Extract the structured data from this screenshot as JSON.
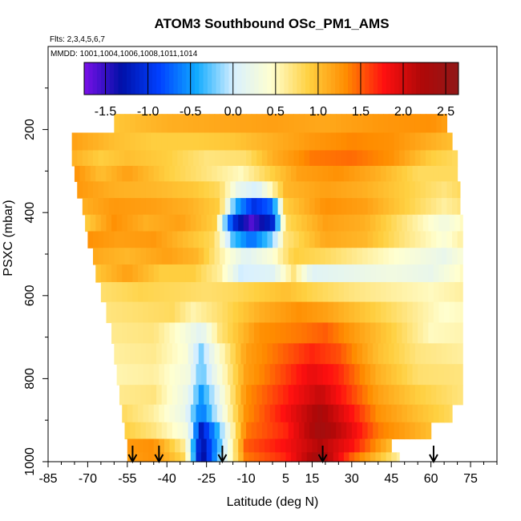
{
  "chart_data": {
    "type": "heatmap",
    "title": "ATOM3 Southbound OSc_PM1_AMS",
    "subtitle_flights": "Flts: 2,3,4,5,6,7",
    "subtitle_dates": "MMDD: 1001,1004,1006,1008,1011,1014",
    "xlabel": "Latitude (deg N)",
    "ylabel": "PSXC (mbar)",
    "xlim": [
      -85,
      85
    ],
    "ylim": [
      1000,
      0
    ],
    "xticks": [
      -85,
      -70,
      -55,
      -40,
      -25,
      -10,
      5,
      15,
      30,
      45,
      60,
      75
    ],
    "yticks": [
      200,
      400,
      600,
      800,
      1000
    ],
    "colorbar": {
      "range": [
        -1.75,
        2.65
      ],
      "ticks": [
        -1.5,
        -1.0,
        -0.5,
        0.0,
        0.5,
        1.0,
        1.5,
        2.0,
        2.5
      ],
      "tick_labels": [
        "-1.5",
        "-1.0",
        "-0.5",
        "0.0",
        "0.5",
        "1.0",
        "1.5",
        "2.0",
        "2.5"
      ],
      "colors": [
        "#7a10e8",
        "#0010a8",
        "#0040ff",
        "#10aaff",
        "#d8f0ff",
        "#ffffd0",
        "#ffd040",
        "#ff8c00",
        "#ff1010",
        "#b00808",
        "#901818"
      ]
    },
    "grid": false,
    "profile_arrows_lat": [
      -53,
      -43,
      -19,
      19,
      61
    ],
    "rows": [
      {
        "p": 185,
        "lat_min": -60,
        "lat_max": 66,
        "nodes": [
          [
            -60,
            0.95
          ],
          [
            -40,
            1.1
          ],
          [
            -20,
            1.15
          ],
          [
            0,
            1.2
          ],
          [
            20,
            1.15
          ],
          [
            40,
            1.25
          ],
          [
            60,
            1.3
          ],
          [
            66,
            1.2
          ]
        ]
      },
      {
        "p": 230,
        "lat_min": -76,
        "lat_max": 68,
        "nodes": [
          [
            -76,
            1.2
          ],
          [
            -60,
            1.0
          ],
          [
            -45,
            0.9
          ],
          [
            -30,
            0.9
          ],
          [
            -15,
            0.95
          ],
          [
            0,
            1.1
          ],
          [
            15,
            1.25
          ],
          [
            30,
            1.35
          ],
          [
            45,
            1.3
          ],
          [
            60,
            1.1
          ],
          [
            68,
            1.0
          ]
        ]
      },
      {
        "p": 270,
        "lat_min": -76,
        "lat_max": 70,
        "nodes": [
          [
            -76,
            1.1
          ],
          [
            -65,
            0.9
          ],
          [
            -55,
            1.0
          ],
          [
            -40,
            0.9
          ],
          [
            -25,
            0.7
          ],
          [
            -10,
            0.75
          ],
          [
            0,
            1.1
          ],
          [
            15,
            1.4
          ],
          [
            30,
            1.45
          ],
          [
            45,
            1.3
          ],
          [
            60,
            0.9
          ],
          [
            70,
            0.8
          ]
        ]
      },
      {
        "p": 305,
        "lat_min": -75,
        "lat_max": 70,
        "nodes": [
          [
            -75,
            1.3
          ],
          [
            -65,
            1.0
          ],
          [
            -55,
            1.2
          ],
          [
            -40,
            0.9
          ],
          [
            -25,
            0.7
          ],
          [
            -12,
            0.5
          ],
          [
            -3,
            0.8
          ],
          [
            10,
            1.2
          ],
          [
            25,
            1.3
          ],
          [
            40,
            1.1
          ],
          [
            55,
            0.8
          ],
          [
            70,
            0.8
          ]
        ]
      },
      {
        "p": 345,
        "lat_min": -74,
        "lat_max": 71,
        "nodes": [
          [
            -74,
            1.25
          ],
          [
            -60,
            1.1
          ],
          [
            -45,
            1.05
          ],
          [
            -30,
            0.95
          ],
          [
            -20,
            0.8
          ],
          [
            -13,
            0.2
          ],
          [
            -6,
            0.0
          ],
          [
            5,
            1.05
          ],
          [
            20,
            1.2
          ],
          [
            35,
            1.1
          ],
          [
            50,
            0.9
          ],
          [
            65,
            0.7
          ],
          [
            71,
            0.8
          ]
        ]
      },
      {
        "p": 385,
        "lat_min": -72,
        "lat_max": 71,
        "nodes": [
          [
            -72,
            1.1
          ],
          [
            -60,
            1.25
          ],
          [
            -45,
            1.2
          ],
          [
            -32,
            1.1
          ],
          [
            -20,
            0.9
          ],
          [
            -14,
            -0.4
          ],
          [
            -7,
            -1.0
          ],
          [
            0,
            -0.7
          ],
          [
            5,
            0.9
          ],
          [
            20,
            1.3
          ],
          [
            35,
            1.2
          ],
          [
            50,
            0.9
          ],
          [
            65,
            0.6
          ],
          [
            71,
            0.7
          ]
        ]
      },
      {
        "p": 425,
        "lat_min": -71,
        "lat_max": 72,
        "nodes": [
          [
            -71,
            0.9
          ],
          [
            -60,
            1.3
          ],
          [
            -48,
            1.1
          ],
          [
            -35,
            1.2
          ],
          [
            -22,
            0.9
          ],
          [
            -15,
            -1.0
          ],
          [
            -8,
            -1.6
          ],
          [
            0,
            -1.1
          ],
          [
            5,
            0.8
          ],
          [
            20,
            1.2
          ],
          [
            35,
            1.1
          ],
          [
            50,
            0.7
          ],
          [
            65,
            0.3
          ],
          [
            72,
            0.5
          ]
        ]
      },
      {
        "p": 465,
        "lat_min": -70,
        "lat_max": 72,
        "nodes": [
          [
            -70,
            1.3
          ],
          [
            -58,
            1.2
          ],
          [
            -45,
            1.25
          ],
          [
            -32,
            1.0
          ],
          [
            -22,
            0.8
          ],
          [
            -15,
            -0.3
          ],
          [
            -8,
            -0.7
          ],
          [
            0,
            -0.2
          ],
          [
            5,
            0.7
          ],
          [
            20,
            1.15
          ],
          [
            35,
            1.05
          ],
          [
            50,
            0.7
          ],
          [
            65,
            0.4
          ],
          [
            72,
            0.6
          ]
        ]
      },
      {
        "p": 505,
        "lat_min": -68,
        "lat_max": 72,
        "nodes": [
          [
            -68,
            1.15
          ],
          [
            -55,
            1.05
          ],
          [
            -40,
            1.2
          ],
          [
            -28,
            1.05
          ],
          [
            -18,
            0.5
          ],
          [
            -10,
            0.1
          ],
          [
            0,
            0.4
          ],
          [
            8,
            0.9
          ],
          [
            20,
            0.8
          ],
          [
            35,
            0.6
          ],
          [
            50,
            0.4
          ],
          [
            65,
            0.2
          ],
          [
            72,
            0.4
          ]
        ]
      },
      {
        "p": 545,
        "lat_min": -67,
        "lat_max": 72,
        "nodes": [
          [
            -67,
            0.95
          ],
          [
            -55,
            1.2
          ],
          [
            -42,
            0.9
          ],
          [
            -30,
            0.9
          ],
          [
            -20,
            0.6
          ],
          [
            -12,
            0.0
          ],
          [
            0,
            0.1
          ],
          [
            8,
            0.7
          ],
          [
            15,
            0.1
          ],
          [
            30,
            0.2
          ],
          [
            45,
            0.3
          ],
          [
            60,
            0.2
          ],
          [
            72,
            0.5
          ]
        ]
      },
      {
        "p": 590,
        "lat_min": -65,
        "lat_max": 72,
        "nodes": [
          [
            -65,
            0.75
          ],
          [
            -50,
            0.85
          ],
          [
            -35,
            0.8
          ],
          [
            -25,
            0.75
          ],
          [
            -15,
            0.8
          ],
          [
            -5,
            0.9
          ],
          [
            5,
            1.0
          ],
          [
            15,
            0.85
          ],
          [
            30,
            0.7
          ],
          [
            45,
            0.6
          ],
          [
            60,
            0.5
          ],
          [
            72,
            0.6
          ]
        ]
      },
      {
        "p": 640,
        "lat_min": -63,
        "lat_max": 72,
        "nodes": [
          [
            -63,
            0.7
          ],
          [
            -50,
            0.75
          ],
          [
            -38,
            0.8
          ],
          [
            -30,
            0.55
          ],
          [
            -20,
            0.75
          ],
          [
            -5,
            1.1
          ],
          [
            10,
            1.3
          ],
          [
            20,
            1.2
          ],
          [
            35,
            0.95
          ],
          [
            50,
            0.7
          ],
          [
            65,
            0.45
          ],
          [
            72,
            0.5
          ]
        ]
      },
      {
        "p": 690,
        "lat_min": -61,
        "lat_max": 72,
        "nodes": [
          [
            -61,
            0.65
          ],
          [
            -45,
            0.7
          ],
          [
            -33,
            0.35
          ],
          [
            -27,
            0.1
          ],
          [
            -20,
            0.7
          ],
          [
            -5,
            1.3
          ],
          [
            10,
            1.4
          ],
          [
            20,
            1.5
          ],
          [
            30,
            1.25
          ],
          [
            45,
            0.9
          ],
          [
            60,
            0.5
          ],
          [
            72,
            0.55
          ]
        ]
      },
      {
        "p": 740,
        "lat_min": -60,
        "lat_max": 72,
        "nodes": [
          [
            -60,
            0.6
          ],
          [
            -45,
            0.65
          ],
          [
            -33,
            0.4
          ],
          [
            -27,
            -0.2
          ],
          [
            -22,
            0.3
          ],
          [
            -10,
            1.2
          ],
          [
            5,
            1.5
          ],
          [
            15,
            1.7
          ],
          [
            25,
            1.55
          ],
          [
            40,
            1.0
          ],
          [
            55,
            0.7
          ],
          [
            72,
            0.6
          ]
        ]
      },
      {
        "p": 790,
        "lat_min": -59,
        "lat_max": 72,
        "nodes": [
          [
            -59,
            0.55
          ],
          [
            -45,
            0.6
          ],
          [
            -32,
            0.3
          ],
          [
            -27,
            -0.3
          ],
          [
            -22,
            0.2
          ],
          [
            -10,
            1.2
          ],
          [
            5,
            1.6
          ],
          [
            15,
            1.9
          ],
          [
            25,
            1.7
          ],
          [
            40,
            1.1
          ],
          [
            55,
            0.75
          ],
          [
            72,
            0.7
          ]
        ]
      },
      {
        "p": 840,
        "lat_min": -58,
        "lat_max": 72,
        "nodes": [
          [
            -58,
            0.65
          ],
          [
            -45,
            0.7
          ],
          [
            -32,
            0.2
          ],
          [
            -27,
            -0.5
          ],
          [
            -22,
            0.0
          ],
          [
            -10,
            1.3
          ],
          [
            5,
            1.7
          ],
          [
            18,
            2.1
          ],
          [
            25,
            1.8
          ],
          [
            40,
            1.2
          ],
          [
            55,
            0.9
          ],
          [
            72,
            0.7
          ]
        ]
      },
      {
        "p": 885,
        "lat_min": -57,
        "lat_max": 68,
        "nodes": [
          [
            -57,
            0.8
          ],
          [
            -45,
            0.6
          ],
          [
            -33,
            0.2
          ],
          [
            -27,
            -0.7
          ],
          [
            -22,
            -0.1
          ],
          [
            -10,
            1.3
          ],
          [
            5,
            1.8
          ],
          [
            18,
            2.3
          ],
          [
            25,
            2.0
          ],
          [
            40,
            1.3
          ],
          [
            55,
            1.0
          ],
          [
            68,
            0.8
          ]
        ]
      },
      {
        "p": 925,
        "lat_min": -56,
        "lat_max": 60,
        "nodes": [
          [
            -56,
            0.9
          ],
          [
            -45,
            0.7
          ],
          [
            -32,
            0.3
          ],
          [
            -27,
            -1.2
          ],
          [
            -21,
            -0.4
          ],
          [
            -10,
            1.4
          ],
          [
            5,
            1.7
          ],
          [
            18,
            2.4
          ],
          [
            28,
            2.0
          ],
          [
            40,
            1.4
          ],
          [
            60,
            1.0
          ]
        ]
      },
      {
        "p": 965,
        "lat_min": -55,
        "lat_max": 45,
        "nodes": [
          [
            -55,
            1.25
          ],
          [
            -45,
            1.3
          ],
          [
            -33,
            0.6
          ],
          [
            -27,
            -1.4
          ],
          [
            -20,
            -0.3
          ],
          [
            -10,
            1.5
          ],
          [
            5,
            1.8
          ],
          [
            18,
            2.2
          ],
          [
            30,
            1.8
          ],
          [
            45,
            1.0
          ]
        ]
      },
      {
        "p": 990,
        "lat_min": -55,
        "lat_max": 48,
        "nodes": [
          [
            -55,
            1.2
          ],
          [
            -45,
            1.3
          ],
          [
            -33,
            0.8
          ],
          [
            -27,
            -1.5
          ],
          [
            -20,
            -0.2
          ],
          [
            -10,
            1.4
          ],
          [
            5,
            1.7
          ],
          [
            18,
            2.4
          ],
          [
            30,
            1.5
          ],
          [
            48,
            0.6
          ]
        ]
      }
    ]
  }
}
